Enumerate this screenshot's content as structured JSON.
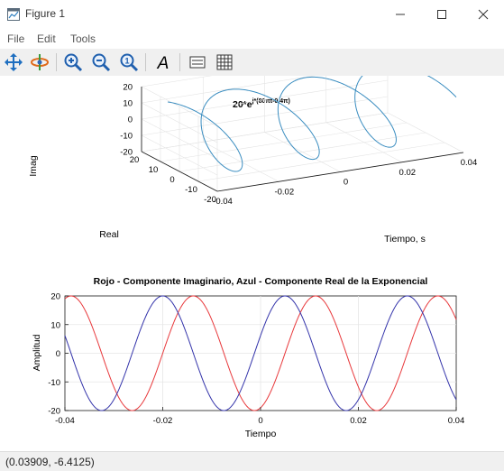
{
  "window": {
    "title": "Figure 1",
    "minimize_icon": "minimize-icon",
    "maximize_icon": "maximize-icon",
    "close_icon": "close-icon"
  },
  "menu": {
    "items": [
      "File",
      "Edit",
      "Tools"
    ]
  },
  "toolbar": {
    "tools": [
      "pan-icon",
      "rotate-icon",
      "zoom-in-icon",
      "zoom-out-icon",
      "zoom-reset-icon",
      "text-icon",
      "legend-icon",
      "grid-icon"
    ]
  },
  "plot3d": {
    "title_base": "20*e",
    "title_exp": "j*(80πt-0.4π)",
    "zlabel": "Imag",
    "xlabel": "Real",
    "ylabel": "Tiempo, s",
    "zticks": [
      "20",
      "10",
      "0",
      "-10",
      "-20"
    ],
    "xticks": [
      "20",
      "10",
      "0",
      "-10",
      "-20"
    ],
    "yticks": [
      "-0.04",
      "-0.02",
      "0",
      "0.02",
      "0.04"
    ],
    "line_color": "#3a8dc0"
  },
  "plot2d": {
    "title": "Rojo - Componente Imaginario, Azul - Componente Real de la Exponencial",
    "xlabel": "Tiempo",
    "ylabel": "Amplitud",
    "xticks": [
      "-0.04",
      "-0.02",
      "0",
      "0.02",
      "0.04"
    ],
    "yticks": [
      "20",
      "10",
      "0",
      "-10",
      "-20"
    ]
  },
  "status": {
    "coords": "(0.03909, -6.4125)"
  },
  "chart_data": [
    {
      "type": "line",
      "title": "20*e^(j*(80πt-0.4π))",
      "xlabel": "Real",
      "ylabel": "Tiempo, s",
      "zlabel": "Imag",
      "series": [
        {
          "function": "x = 20*cos(80*pi*t - 0.4*pi), z = 20*sin(80*pi*t - 0.4*pi)",
          "color": "#3a8dc0"
        }
      ],
      "ylim": [
        -0.04,
        0.04
      ],
      "xlim": [
        -20,
        20
      ],
      "zlim": [
        -20,
        20
      ],
      "grid": true
    },
    {
      "type": "line",
      "title": "Rojo - Componente Imaginario, Azul - Componente Real de la Exponencial",
      "xlabel": "Tiempo",
      "ylabel": "Amplitud",
      "xlim": [
        -0.04,
        0.04
      ],
      "ylim": [
        -20,
        20
      ],
      "grid": true,
      "series": [
        {
          "function": "20*sin(80*pi*t - 0.4*pi)",
          "color": "#e8383b"
        },
        {
          "function": "20*cos(80*pi*t - 0.4*pi)",
          "color": "#3333aa"
        }
      ]
    }
  ]
}
